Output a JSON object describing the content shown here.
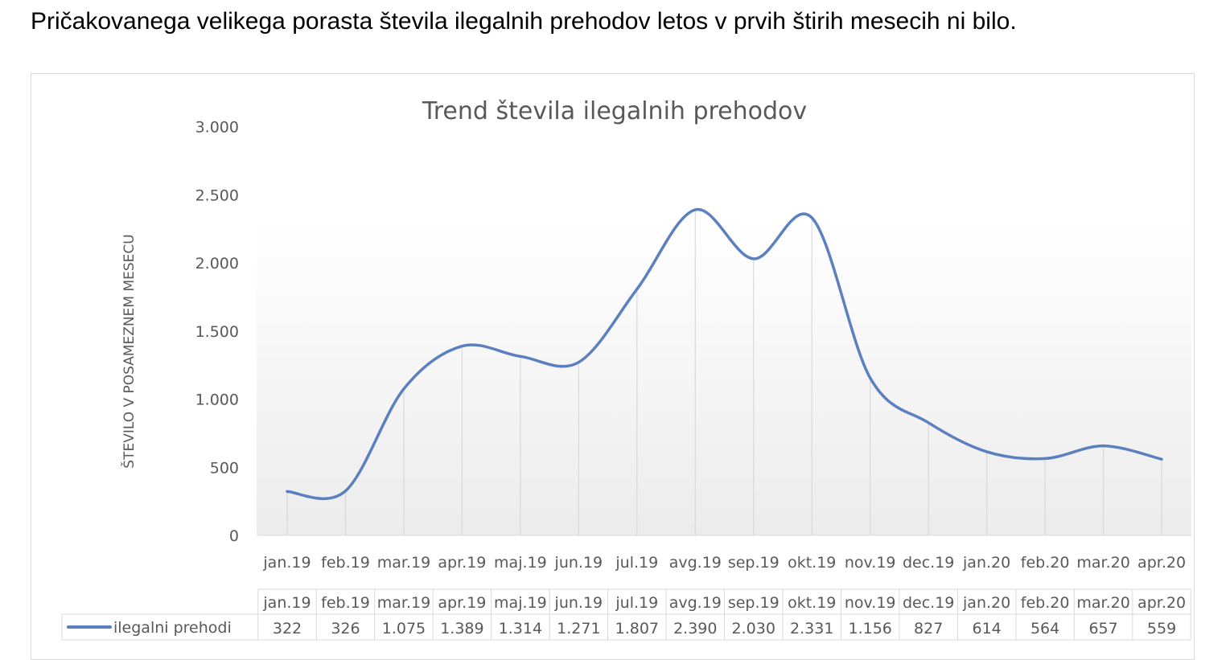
{
  "headline": "Pričakovanega velikega porasta števila ilegalnih prehodov letos v prvih štirih mesecih ni bilo.",
  "chart_data": {
    "type": "line",
    "title": "Trend števila ilegalnih  prehodov",
    "xlabel": "",
    "ylabel": "ŠTEVILO V POSAMEZNEM MESECU",
    "categories": [
      "jan.19",
      "feb.19",
      "mar.19",
      "apr.19",
      "maj.19",
      "jun.19",
      "jul.19",
      "avg.19",
      "sep.19",
      "okt.19",
      "nov.19",
      "dec.19",
      "jan.20",
      "feb.20",
      "mar.20",
      "apr.20"
    ],
    "series": [
      {
        "name": "ilegalni prehodi",
        "values": [
          322,
          326,
          1075,
          1389,
          1314,
          1271,
          1807,
          2390,
          2030,
          2331,
          1156,
          827,
          614,
          564,
          657,
          559
        ],
        "labels": [
          "322",
          "326",
          "1.075",
          "1.389",
          "1.314",
          "1.271",
          "1.807",
          "2.390",
          "2.030",
          "2.331",
          "1.156",
          "827",
          "614",
          "564",
          "657",
          "559"
        ],
        "color": "#5b7fbf"
      }
    ],
    "ylim": [
      0,
      3000
    ],
    "yticks": [
      0,
      500,
      1000,
      1500,
      2000,
      2500,
      3000
    ],
    "ytick_labels": [
      "0",
      "500",
      "1.000",
      "1.500",
      "2.000",
      "2.500",
      "3.000"
    ],
    "drop_lines": true,
    "smooth": true,
    "grid": false,
    "data_table": true
  }
}
